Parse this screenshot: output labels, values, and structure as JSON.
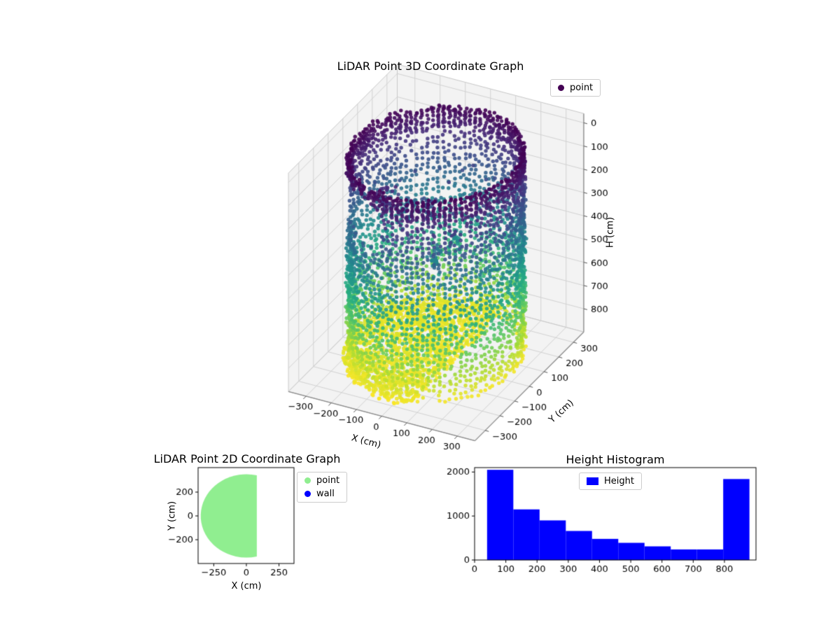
{
  "figure": {
    "background": "#ffffff"
  },
  "chart_data": [
    {
      "id": "lidar-3d",
      "type": "scatter",
      "projection": "3d",
      "title": "LiDAR Point 3D Coordinate Graph",
      "xlabel": "X (cm)",
      "ylabel": "Y (cm)",
      "zlabel": "H (cm)",
      "xticks": [
        -300,
        -200,
        -100,
        0,
        100,
        200,
        300
      ],
      "yticks": [
        -300,
        -200,
        -100,
        0,
        100,
        200,
        300
      ],
      "zticks": [
        0,
        100,
        200,
        300,
        400,
        500,
        600,
        700,
        800
      ],
      "xlim": [
        -370,
        370
      ],
      "ylim": [
        -370,
        370
      ],
      "hlim": [
        -40,
        900
      ],
      "zaxis_inverted": true,
      "colormap": "viridis",
      "legend": [
        {
          "label": "point",
          "color": "#440154",
          "marker": "circle"
        }
      ],
      "legend_location": "upper right",
      "point_cloud": {
        "shape": "room scan: cylindrical wall + floor + scattered objects",
        "cylinder_center": [
          0,
          0
        ],
        "cylinder_radius_cm": 300,
        "height_range_cm": [
          0,
          880
        ],
        "wall_gap_theta_deg": [
          200,
          262
        ],
        "wall_gap_height_cm": [
          40,
          240
        ],
        "floor_height_cm": [
          830,
          880
        ],
        "floor_clip_x_cm": 80,
        "color_by": "height (dark purple at H=0 top, yellow at H=880 bottom)"
      }
    },
    {
      "id": "lidar-2d",
      "type": "scatter",
      "projection": "2d",
      "title": "LiDAR Point 2D Coordinate Graph",
      "xlabel": "X (cm)",
      "ylabel": "Y (cm)",
      "xticks": [
        -250,
        0,
        250
      ],
      "yticks": [
        -200,
        0,
        200
      ],
      "xlim": [
        -370,
        365
      ],
      "ylim": [
        -400,
        406
      ],
      "legend": [
        {
          "label": "point",
          "color": "#90ee90",
          "marker": "circle"
        },
        {
          "label": "wall",
          "color": "#0000ff",
          "marker": "circle"
        }
      ],
      "legend_location": "outside upper right",
      "region": {
        "shape": "circle clipped by vertical chord",
        "center": [
          0,
          0
        ],
        "radius_cm": 350,
        "clip_x_max_cm": 80,
        "fill": "#90ee90"
      }
    },
    {
      "id": "height-histogram",
      "type": "bar",
      "title": "Height Histogram",
      "legend": [
        {
          "label": "Height",
          "color": "#0000ff",
          "marker": "rect"
        }
      ],
      "legend_location": "upper center",
      "bar_color": "#0000ff",
      "bin_start": 40,
      "bin_width": 84,
      "values": [
        2050,
        1150,
        900,
        660,
        480,
        390,
        310,
        240,
        240,
        1840
      ],
      "xticks": [
        0,
        100,
        200,
        300,
        400,
        500,
        600,
        700,
        800
      ],
      "yticks": [
        0,
        1000,
        2000
      ],
      "xlim": [
        0,
        901
      ],
      "ylim": [
        0,
        2100
      ]
    }
  ]
}
